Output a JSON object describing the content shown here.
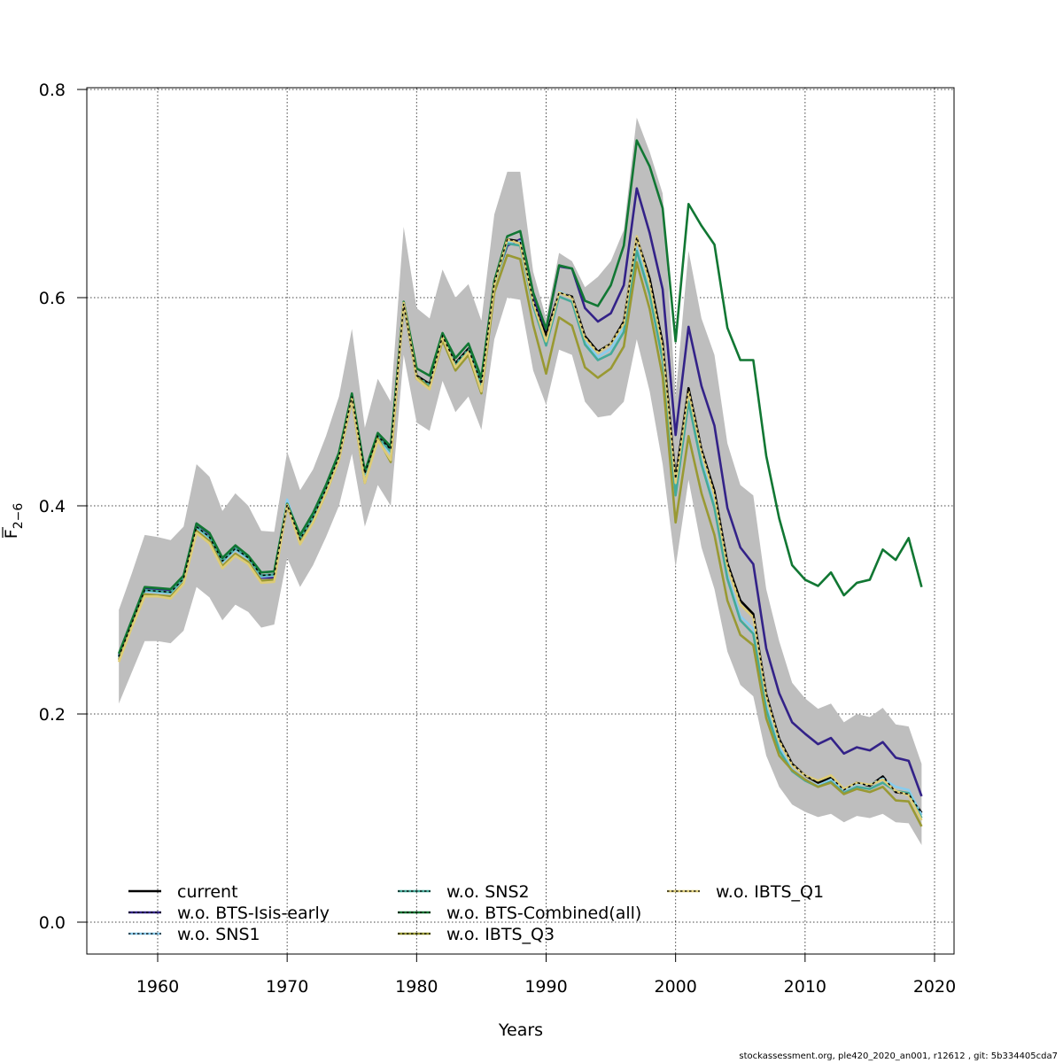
{
  "chart_data": {
    "type": "line",
    "title": "",
    "xlabel": "Years",
    "ylabel": "F̄ 2-6",
    "ylabel_main": "F",
    "ylabel_sub": "2−6",
    "xlim": [
      1955,
      2021
    ],
    "ylim": [
      -0.03,
      0.8
    ],
    "x_ticks": [
      1960,
      1970,
      1980,
      1990,
      2000,
      2010,
      2020
    ],
    "x_tick_labels": [
      "1960",
      "1970",
      "1980",
      "1990",
      "2000",
      "2010",
      "2020"
    ],
    "y_ticks": [
      0.0,
      0.2,
      0.4,
      0.6,
      0.8
    ],
    "y_tick_labels": [
      "0.0",
      "0.2",
      "0.4",
      "0.6",
      "0.8"
    ],
    "grid": true,
    "legend_placement": "bottom",
    "x": [
      1957,
      1958,
      1959,
      1960,
      1961,
      1962,
      1963,
      1964,
      1965,
      1966,
      1967,
      1968,
      1969,
      1970,
      1971,
      1972,
      1973,
      1974,
      1975,
      1976,
      1977,
      1978,
      1979,
      1980,
      1981,
      1982,
      1983,
      1984,
      1985,
      1986,
      1987,
      1988,
      1989,
      1990,
      1991,
      1992,
      1993,
      1994,
      1995,
      1996,
      1997,
      1998,
      1999,
      2000,
      2001,
      2002,
      2003,
      2004,
      2005,
      2006,
      2007,
      2008,
      2009,
      2010,
      2011,
      2012,
      2013,
      2014,
      2015,
      2016,
      2017,
      2018,
      2019
    ],
    "confidence_band": {
      "name": "95% CI (current)",
      "color": "#bebebe",
      "upper": [
        0.3,
        0.335,
        0.372,
        0.37,
        0.367,
        0.38,
        0.44,
        0.428,
        0.395,
        0.412,
        0.4,
        0.376,
        0.375,
        0.452,
        0.415,
        0.435,
        0.467,
        0.505,
        0.57,
        0.475,
        0.522,
        0.5,
        0.668,
        0.59,
        0.58,
        0.627,
        0.6,
        0.613,
        0.578,
        0.68,
        0.721,
        0.721,
        0.625,
        0.58,
        0.643,
        0.635,
        0.61,
        0.62,
        0.635,
        0.665,
        0.773,
        0.74,
        0.7,
        0.505,
        0.645,
        0.58,
        0.545,
        0.46,
        0.42,
        0.41,
        0.32,
        0.27,
        0.23,
        0.215,
        0.205,
        0.21,
        0.192,
        0.2,
        0.197,
        0.206,
        0.19,
        0.188,
        0.152
      ],
      "lower": [
        0.21,
        0.24,
        0.27,
        0.27,
        0.268,
        0.28,
        0.322,
        0.312,
        0.29,
        0.305,
        0.298,
        0.283,
        0.286,
        0.35,
        0.322,
        0.343,
        0.37,
        0.4,
        0.45,
        0.38,
        0.42,
        0.4,
        0.545,
        0.48,
        0.472,
        0.52,
        0.49,
        0.505,
        0.473,
        0.56,
        0.6,
        0.598,
        0.53,
        0.497,
        0.55,
        0.545,
        0.5,
        0.485,
        0.487,
        0.5,
        0.56,
        0.51,
        0.44,
        0.341,
        0.425,
        0.36,
        0.32,
        0.26,
        0.228,
        0.217,
        0.16,
        0.13,
        0.113,
        0.106,
        0.101,
        0.104,
        0.096,
        0.102,
        0.1,
        0.104,
        0.096,
        0.095,
        0.074
      ]
    },
    "series": [
      {
        "name": "current",
        "color": "#000000",
        "dashed": false,
        "values": [
          0.255,
          0.287,
          0.319,
          0.318,
          0.317,
          0.33,
          0.38,
          0.37,
          0.347,
          0.359,
          0.35,
          0.333,
          0.334,
          0.401,
          0.368,
          0.389,
          0.416,
          0.447,
          0.505,
          0.431,
          0.467,
          0.454,
          0.594,
          0.525,
          0.517,
          0.563,
          0.537,
          0.551,
          0.517,
          0.614,
          0.656,
          0.654,
          0.597,
          0.564,
          0.605,
          0.601,
          0.563,
          0.548,
          0.556,
          0.577,
          0.658,
          0.618,
          0.556,
          0.426,
          0.513,
          0.454,
          0.414,
          0.345,
          0.309,
          0.296,
          0.219,
          0.176,
          0.152,
          0.141,
          0.134,
          0.139,
          0.127,
          0.134,
          0.131,
          0.14,
          0.125,
          0.123,
          0.105
        ]
      },
      {
        "name": "w.o. BTS-Isis-early",
        "color": "#332288",
        "dashed": true,
        "values": [
          0.256,
          0.288,
          0.321,
          0.32,
          0.319,
          0.332,
          0.383,
          0.373,
          0.348,
          0.361,
          0.351,
          0.331,
          0.331,
          0.401,
          0.366,
          0.389,
          0.416,
          0.447,
          0.505,
          0.431,
          0.467,
          0.451,
          0.594,
          0.522,
          0.514,
          0.56,
          0.532,
          0.546,
          0.512,
          0.614,
          0.65,
          0.656,
          0.6,
          0.569,
          0.63,
          0.628,
          0.59,
          0.577,
          0.585,
          0.612,
          0.705,
          0.662,
          0.608,
          0.468,
          0.572,
          0.515,
          0.477,
          0.398,
          0.36,
          0.344,
          0.263,
          0.22,
          0.192,
          0.181,
          0.171,
          0.177,
          0.162,
          0.168,
          0.165,
          0.173,
          0.158,
          0.155,
          0.121
        ]
      },
      {
        "name": "w.o. SNS1",
        "color": "#88CCEE",
        "dashed": true,
        "values": [
          0.254,
          0.286,
          0.318,
          0.317,
          0.316,
          0.329,
          0.379,
          0.369,
          0.346,
          0.358,
          0.349,
          0.332,
          0.333,
          0.406,
          0.368,
          0.388,
          0.415,
          0.446,
          0.504,
          0.43,
          0.466,
          0.45,
          0.596,
          0.523,
          0.514,
          0.561,
          0.534,
          0.548,
          0.512,
          0.612,
          0.653,
          0.654,
          0.594,
          0.556,
          0.606,
          0.6,
          0.558,
          0.543,
          0.551,
          0.572,
          0.648,
          0.607,
          0.544,
          0.415,
          0.502,
          0.443,
          0.402,
          0.333,
          0.294,
          0.282,
          0.208,
          0.168,
          0.147,
          0.137,
          0.131,
          0.137,
          0.127,
          0.133,
          0.132,
          0.138,
          0.13,
          0.127,
          0.103
        ]
      },
      {
        "name": "w.o. SNS2",
        "color": "#44AA99",
        "dashed": true,
        "values": [
          0.255,
          0.287,
          0.319,
          0.318,
          0.317,
          0.33,
          0.38,
          0.37,
          0.347,
          0.359,
          0.35,
          0.333,
          0.334,
          0.401,
          0.368,
          0.389,
          0.416,
          0.447,
          0.505,
          0.431,
          0.467,
          0.452,
          0.593,
          0.524,
          0.516,
          0.562,
          0.536,
          0.55,
          0.516,
          0.612,
          0.652,
          0.65,
          0.592,
          0.554,
          0.601,
          0.596,
          0.555,
          0.54,
          0.546,
          0.567,
          0.645,
          0.603,
          0.54,
          0.41,
          0.5,
          0.44,
          0.398,
          0.33,
          0.29,
          0.277,
          0.204,
          0.165,
          0.145,
          0.136,
          0.13,
          0.135,
          0.124,
          0.13,
          0.128,
          0.134,
          0.126,
          0.124,
          0.1
        ]
      },
      {
        "name": "w.o. BTS-Combined(all)",
        "color": "#117733",
        "dashed": true,
        "values": [
          0.258,
          0.29,
          0.322,
          0.321,
          0.32,
          0.333,
          0.383,
          0.374,
          0.35,
          0.362,
          0.352,
          0.336,
          0.337,
          0.402,
          0.372,
          0.393,
          0.42,
          0.451,
          0.508,
          0.433,
          0.47,
          0.457,
          0.596,
          0.532,
          0.525,
          0.566,
          0.542,
          0.556,
          0.523,
          0.616,
          0.659,
          0.664,
          0.605,
          0.57,
          0.631,
          0.628,
          0.597,
          0.592,
          0.612,
          0.65,
          0.751,
          0.726,
          0.686,
          0.558,
          0.69,
          0.669,
          0.651,
          0.571,
          0.54,
          0.54,
          0.448,
          0.388,
          0.343,
          0.329,
          0.323,
          0.336,
          0.314,
          0.326,
          0.329,
          0.358,
          0.348,
          0.369,
          0.322
        ]
      },
      {
        "name": "w.o. IBTS_Q3",
        "color": "#999933",
        "dashed": true,
        "values": [
          0.252,
          0.284,
          0.315,
          0.314,
          0.313,
          0.326,
          0.376,
          0.366,
          0.342,
          0.354,
          0.346,
          0.328,
          0.329,
          0.4,
          0.365,
          0.384,
          0.412,
          0.444,
          0.502,
          0.422,
          0.465,
          0.442,
          0.594,
          0.524,
          0.513,
          0.559,
          0.53,
          0.545,
          0.508,
          0.605,
          0.641,
          0.637,
          0.574,
          0.527,
          0.581,
          0.573,
          0.533,
          0.523,
          0.532,
          0.553,
          0.634,
          0.589,
          0.524,
          0.384,
          0.467,
          0.412,
          0.372,
          0.309,
          0.276,
          0.266,
          0.196,
          0.16,
          0.146,
          0.137,
          0.13,
          0.134,
          0.123,
          0.128,
          0.125,
          0.13,
          0.117,
          0.116,
          0.092
        ]
      },
      {
        "name": "w.o. IBTS_Q1",
        "color": "#DDCC77",
        "dashed": true,
        "values": [
          0.25,
          0.283,
          0.313,
          0.313,
          0.311,
          0.325,
          0.374,
          0.364,
          0.34,
          0.352,
          0.344,
          0.326,
          0.327,
          0.401,
          0.363,
          0.384,
          0.412,
          0.444,
          0.503,
          0.422,
          0.463,
          0.444,
          0.595,
          0.522,
          0.512,
          0.562,
          0.533,
          0.548,
          0.51,
          0.612,
          0.656,
          0.652,
          0.595,
          0.558,
          0.605,
          0.6,
          0.561,
          0.547,
          0.556,
          0.575,
          0.659,
          0.613,
          0.552,
          0.422,
          0.51,
          0.452,
          0.41,
          0.342,
          0.305,
          0.293,
          0.217,
          0.174,
          0.151,
          0.141,
          0.136,
          0.141,
          0.128,
          0.134,
          0.132,
          0.137,
          0.126,
          0.122,
          0.098
        ]
      }
    ]
  },
  "legend": {
    "items": [
      {
        "label": "current",
        "color": "#000000"
      },
      {
        "label": "w.o. BTS-Isis-early",
        "color": "#332288"
      },
      {
        "label": "w.o. SNS1",
        "color": "#88CCEE"
      },
      {
        "label": "w.o. SNS2",
        "color": "#44AA99"
      },
      {
        "label": "w.o. BTS-Combined(all)",
        "color": "#117733"
      },
      {
        "label": "w.o. IBTS_Q3",
        "color": "#999933"
      },
      {
        "label": "w.o. IBTS_Q1",
        "color": "#DDCC77"
      }
    ]
  },
  "footer": "stockassessment.org, ple420_2020_an001, r12612 , git: 5b334405cda7"
}
